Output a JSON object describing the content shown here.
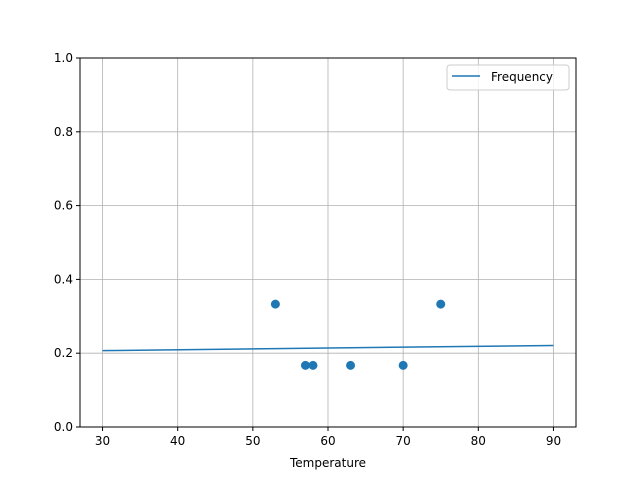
{
  "chart_data": {
    "type": "scatter",
    "title": "",
    "xlabel": "Temperature",
    "ylabel": "",
    "xlim": [
      27,
      93
    ],
    "ylim": [
      0,
      1
    ],
    "xticks": [
      30,
      40,
      50,
      60,
      70,
      80,
      90
    ],
    "yticks": [
      0.0,
      0.2,
      0.4,
      0.6,
      0.8,
      1.0
    ],
    "xtick_labels": [
      "30",
      "40",
      "50",
      "60",
      "70",
      "80",
      "90"
    ],
    "ytick_labels": [
      "0.0",
      "0.2",
      "0.4",
      "0.6",
      "0.8",
      "1.0"
    ],
    "grid": true,
    "legend_placement": "top-right",
    "color": "#1f77b4",
    "points": {
      "x": [
        53,
        57,
        58,
        63,
        70,
        75
      ],
      "y": [
        0.333,
        0.167,
        0.167,
        0.167,
        0.167,
        0.333
      ]
    },
    "series": [
      {
        "name": "Frequency",
        "type": "line",
        "x": [
          30,
          90
        ],
        "y": [
          0.207,
          0.221
        ]
      }
    ]
  }
}
